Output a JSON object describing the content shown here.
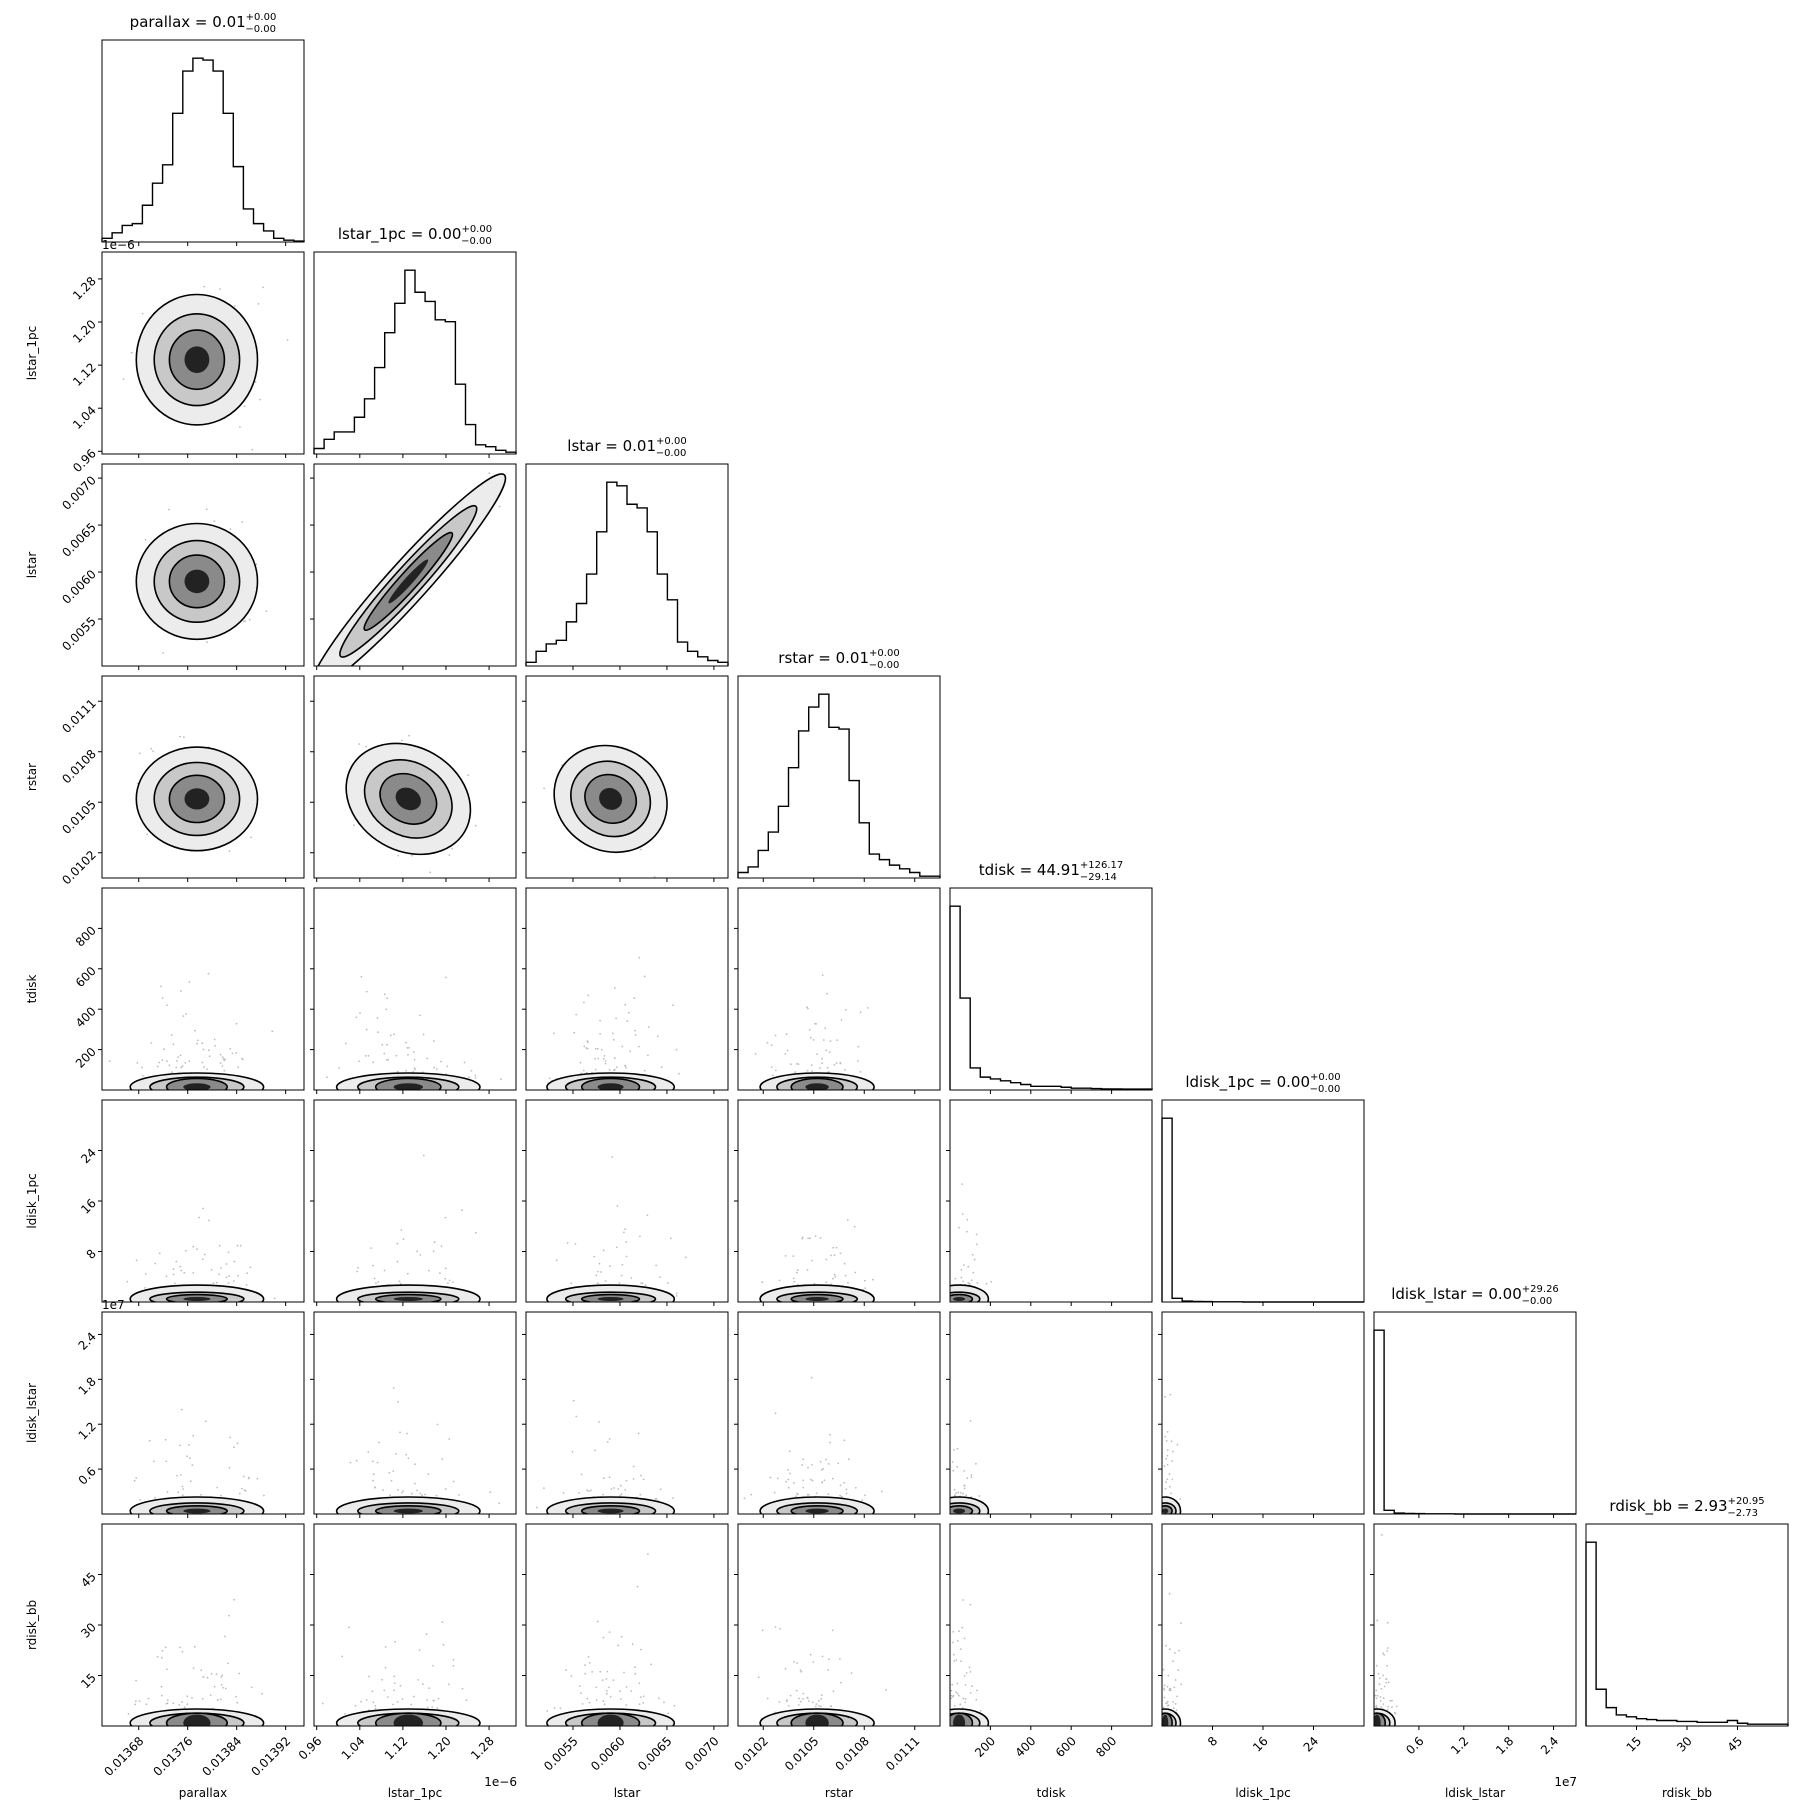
{
  "chart_data": {
    "type": "corner",
    "params": [
      {
        "name": "parallax",
        "title": {
          "text": "parallax = 0.01",
          "sup": "+0.00",
          "sub": "−0.00"
        },
        "range": [
          0.01362,
          0.01395
        ],
        "ticks": [
          {
            "v": 0.01368,
            "label": "0.01368"
          },
          {
            "v": 0.01376,
            "label": "0.01376"
          },
          {
            "v": 0.01384,
            "label": "0.01384"
          },
          {
            "v": 0.01392,
            "label": "0.01392"
          }
        ],
        "offset": "",
        "mean": 0.013775,
        "sd": 4.5e-05,
        "hist": [
          0.02,
          0.05,
          0.09,
          0.1,
          0.2,
          0.32,
          0.42,
          0.7,
          0.93,
          1.0,
          0.99,
          0.93,
          0.7,
          0.41,
          0.18,
          0.1,
          0.06,
          0.02,
          0.01,
          0.005
        ]
      },
      {
        "name": "lstar_1pc",
        "title": {
          "text": "lstar_1pc = 0.00",
          "sup": "+0.00",
          "sub": "−0.00"
        },
        "range": [
          0.955,
          1.33
        ],
        "ticks": [
          {
            "v": 0.96,
            "label": "0.96"
          },
          {
            "v": 1.04,
            "label": "1.04"
          },
          {
            "v": 1.12,
            "label": "1.12"
          },
          {
            "v": 1.2,
            "label": "1.20"
          },
          {
            "v": 1.28,
            "label": "1.28"
          }
        ],
        "offset": "1e−6",
        "mean": 1.13,
        "sd": 0.055,
        "hist": [
          0.03,
          0.08,
          0.12,
          0.12,
          0.2,
          0.3,
          0.47,
          0.66,
          0.82,
          1.0,
          0.88,
          0.83,
          0.73,
          0.72,
          0.38,
          0.16,
          0.05,
          0.04,
          0.02,
          0.01
        ]
      },
      {
        "name": "lstar",
        "title": {
          "text": "lstar = 0.01",
          "sup": "+0.00",
          "sub": "−0.00"
        },
        "range": [
          0.005,
          0.00715
        ],
        "ticks": [
          {
            "v": 0.0055,
            "label": "0.0055"
          },
          {
            "v": 0.006,
            "label": "0.0060"
          },
          {
            "v": 0.0065,
            "label": "0.0065"
          },
          {
            "v": 0.007,
            "label": "0.0070"
          }
        ],
        "offset": "",
        "mean": 0.0059,
        "sd": 0.00028,
        "hist": [
          0.02,
          0.08,
          0.12,
          0.14,
          0.24,
          0.34,
          0.5,
          0.73,
          1.0,
          0.98,
          0.88,
          0.86,
          0.73,
          0.5,
          0.36,
          0.13,
          0.08,
          0.05,
          0.03,
          0.02
        ]
      },
      {
        "name": "rstar",
        "title": {
          "text": "rstar = 0.01",
          "sup": "+0.00",
          "sub": "−0.00"
        },
        "range": [
          0.01005,
          0.01125
        ],
        "ticks": [
          {
            "v": 0.0102,
            "label": "0.0102"
          },
          {
            "v": 0.0105,
            "label": "0.0105"
          },
          {
            "v": 0.0108,
            "label": "0.0108"
          },
          {
            "v": 0.0111,
            "label": "0.0111"
          }
        ],
        "offset": "",
        "mean": 0.01052,
        "sd": 0.00014,
        "hist": [
          0.03,
          0.06,
          0.15,
          0.25,
          0.39,
          0.6,
          0.8,
          0.93,
          1.0,
          0.82,
          0.81,
          0.53,
          0.3,
          0.13,
          0.1,
          0.07,
          0.05,
          0.03,
          0.01,
          0.01
        ]
      },
      {
        "name": "tdisk",
        "title": {
          "text": "tdisk = 44.91",
          "sup": "+126.17",
          "sub": "−29.14"
        },
        "range": [
          0,
          1000
        ],
        "ticks": [
          {
            "v": 200,
            "label": "200"
          },
          {
            "v": 400,
            "label": "400"
          },
          {
            "v": 600,
            "label": "600"
          },
          {
            "v": 800,
            "label": "800"
          }
        ],
        "offset": "",
        "mean": 45,
        "sd": 60,
        "hist": [
          1.0,
          0.5,
          0.12,
          0.07,
          0.06,
          0.05,
          0.04,
          0.03,
          0.02,
          0.02,
          0.02,
          0.015,
          0.01,
          0.01,
          0.008,
          0.006,
          0.006,
          0.005,
          0.005,
          0.005
        ]
      },
      {
        "name": "ldisk_1pc",
        "title": {
          "text": "ldisk_1pc = 0.00",
          "sup": "+0.00",
          "sub": "−0.00"
        },
        "range": [
          0,
          32
        ],
        "ticks": [
          {
            "v": 8,
            "label": "8"
          },
          {
            "v": 16,
            "label": "16"
          },
          {
            "v": 24,
            "label": "24"
          }
        ],
        "offset": "",
        "mean": 0.5,
        "sd": 1,
        "hist": [
          1.0,
          0.02,
          0.005,
          0.003,
          0.002,
          0.001,
          0.001,
          0.001,
          0,
          0,
          0,
          0,
          0,
          0,
          0,
          0,
          0,
          0,
          0,
          0
        ]
      },
      {
        "name": "ldisk_lstar",
        "title": {
          "text": "ldisk_lstar = 0.00",
          "sup": "+29.26",
          "sub": "−0.00"
        },
        "range": [
          0,
          2.7
        ],
        "ticks": [
          {
            "v": 0.6,
            "label": "0.6"
          },
          {
            "v": 1.2,
            "label": "1.2"
          },
          {
            "v": 1.8,
            "label": "1.8"
          },
          {
            "v": 2.4,
            "label": "2.4"
          }
        ],
        "offset": "1e7",
        "mean": 0.04,
        "sd": 0.1,
        "hist": [
          1.0,
          0.02,
          0.005,
          0.003,
          0.002,
          0.001,
          0.001,
          0.001,
          0,
          0,
          0,
          0,
          0,
          0,
          0,
          0,
          0,
          0,
          0,
          0
        ]
      },
      {
        "name": "rdisk_bb",
        "title": {
          "text": "rdisk_bb = 2.93",
          "sup": "+20.95",
          "sub": "−2.73"
        },
        "range": [
          0,
          60
        ],
        "ticks": [
          {
            "v": 15,
            "label": "15"
          },
          {
            "v": 30,
            "label": "30"
          },
          {
            "v": 45,
            "label": "45"
          }
        ],
        "offset": "",
        "mean": 3,
        "sd": 8,
        "hist": [
          1.0,
          0.2,
          0.1,
          0.06,
          0.05,
          0.04,
          0.035,
          0.03,
          0.03,
          0.025,
          0.025,
          0.02,
          0.02,
          0.02,
          0.03,
          0.015,
          0.01,
          0.01,
          0.01,
          0.01
        ]
      }
    ]
  }
}
